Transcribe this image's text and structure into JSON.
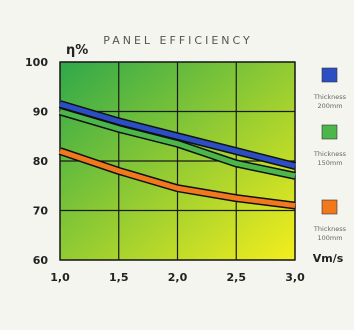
{
  "chart_data": {
    "type": "line",
    "title": "PANEL EFFICIENCY",
    "ylabel": "η%",
    "xlabel": "Vm/s",
    "x": [
      1.0,
      1.5,
      2.0,
      2.5,
      3.0
    ],
    "xtick_labels": [
      "1,0",
      "1,5",
      "2,0",
      "2,5",
      "3,0"
    ],
    "yticks": [
      60,
      70,
      80,
      90,
      100
    ],
    "ytick_labels": [
      "60",
      "70",
      "80",
      "90",
      "100"
    ],
    "xlim": [
      1.0,
      3.0
    ],
    "ylim": [
      60,
      100
    ],
    "grid": true,
    "legend_position": "right",
    "background_gradient": [
      "#2fa84a",
      "#f4ee1c"
    ],
    "series": [
      {
        "name": "Thickness 200mm",
        "legend_lines": [
          "Thickness",
          "200mm"
        ],
        "color": "#2b4fc2",
        "values": [
          91.5,
          88.0,
          85.0,
          82.0,
          79.0
        ]
      },
      {
        "name": "Thickness 150mm",
        "legend_lines": [
          "Thickness",
          "150mm"
        ],
        "color": "#4bb649",
        "values": [
          90.0,
          86.5,
          83.5,
          79.5,
          77.0
        ]
      },
      {
        "name": "Thickness 100mm",
        "legend_lines": [
          "Thickness",
          "100mm"
        ],
        "color": "#f2781e",
        "values": [
          82.0,
          78.0,
          74.5,
          72.5,
          71.0
        ]
      }
    ]
  }
}
